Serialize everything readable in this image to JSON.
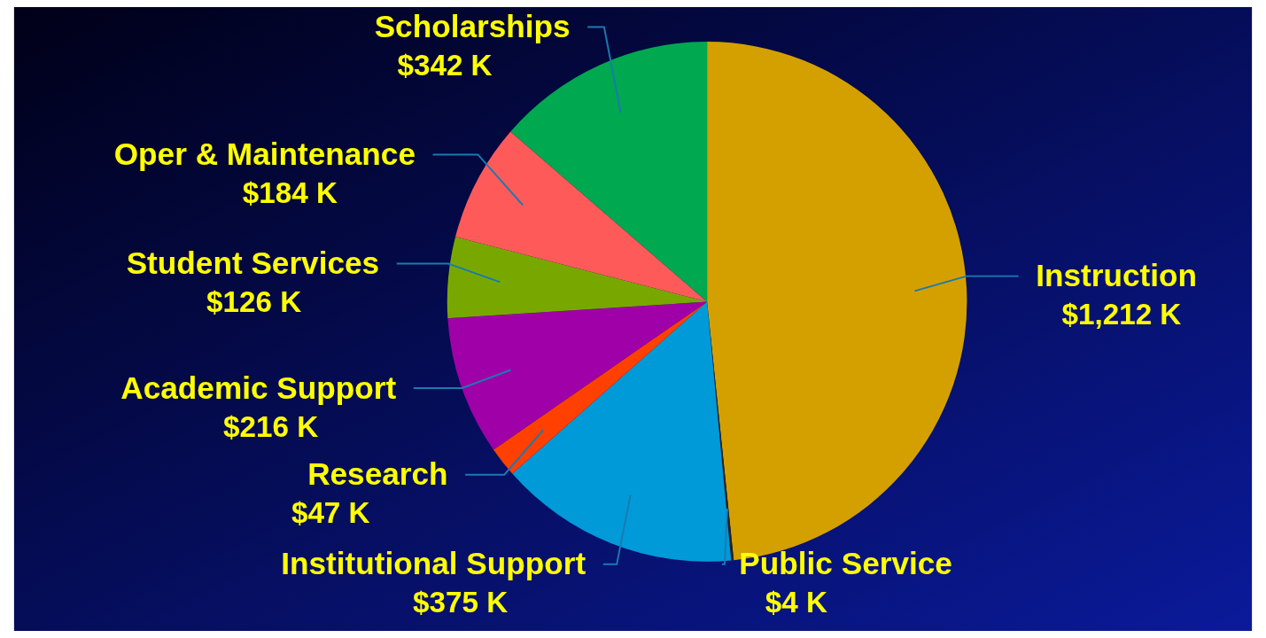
{
  "chart_data": {
    "type": "pie",
    "categories": [
      "Instruction",
      "Public Service",
      "Institutional Support",
      "Research",
      "Academic Support",
      "Student Services",
      "Oper & Maintenance",
      "Scholarships"
    ],
    "values": [
      1212,
      4,
      375,
      47,
      216,
      126,
      184,
      342
    ],
    "value_labels": [
      "$1,212 K",
      "$4 K",
      "$375 K",
      "$47 K",
      "$216 K",
      "$126 K",
      "$184 K",
      "$342 K"
    ],
    "colors": [
      "#d4a000",
      "#202020",
      "#009ad8",
      "#ff4000",
      "#a000a8",
      "#78a800",
      "#ff5a5a",
      "#00a850"
    ]
  }
}
